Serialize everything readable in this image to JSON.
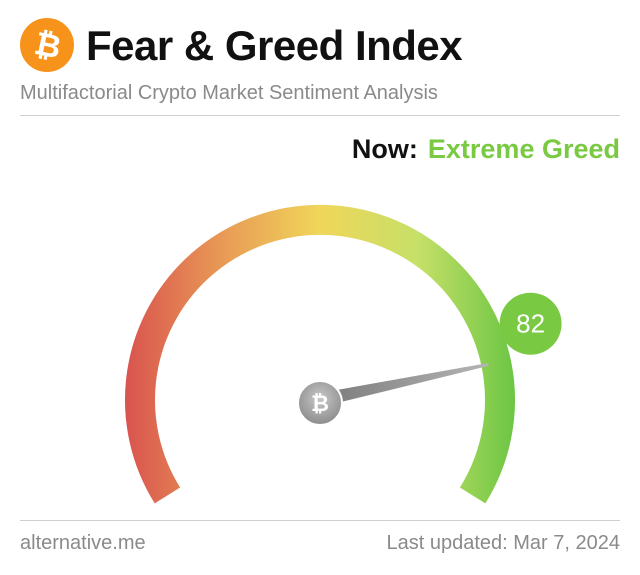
{
  "header": {
    "title": "Fear & Greed Index",
    "subtitle": "Multifactorial Crypto Market Sentiment Analysis",
    "logo_icon": "bitcoin-icon",
    "logo_color": "#f7931a"
  },
  "status": {
    "now_label": "Now:",
    "sentiment": "Extreme Greed",
    "sentiment_color": "#7ac943"
  },
  "gauge": {
    "value": 82,
    "value_label": "82",
    "range": [
      0,
      100
    ],
    "needle_icon": "bitcoin-icon",
    "colors": {
      "fear": "#d9534f",
      "neutral": "#f0d65a",
      "greed": "#7ac943"
    }
  },
  "footer": {
    "source": "alternative.me",
    "last_updated": "Last updated: Mar 7, 2024"
  }
}
